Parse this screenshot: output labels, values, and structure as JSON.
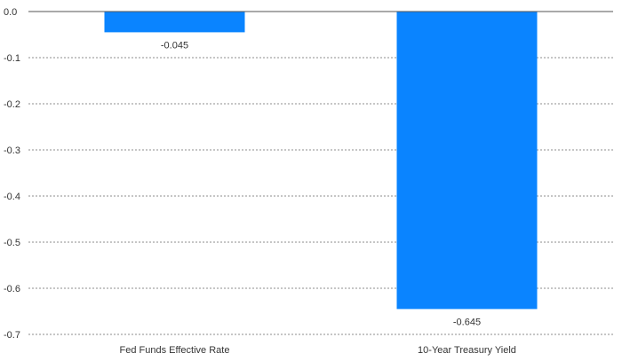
{
  "chart_data": {
    "type": "bar",
    "categories": [
      "Fed Funds Effective Rate",
      "10-Year Treasury Yield"
    ],
    "values": [
      -0.045,
      -0.645
    ],
    "data_labels": [
      "-0.045",
      "-0.645"
    ],
    "ylim": [
      -0.7,
      0.0
    ],
    "yticks": [
      0.0,
      -0.1,
      -0.2,
      -0.3,
      -0.4,
      -0.5,
      -0.6,
      -0.7
    ],
    "ytick_labels": [
      "0.0",
      "-0.1",
      "-0.2",
      "-0.3",
      "-0.4",
      "-0.5",
      "-0.6",
      "-0.7"
    ],
    "grid": true,
    "bar_color": "#0a84ff",
    "grid_color": "#8c8c8c",
    "zero_line_color": "#555555"
  }
}
